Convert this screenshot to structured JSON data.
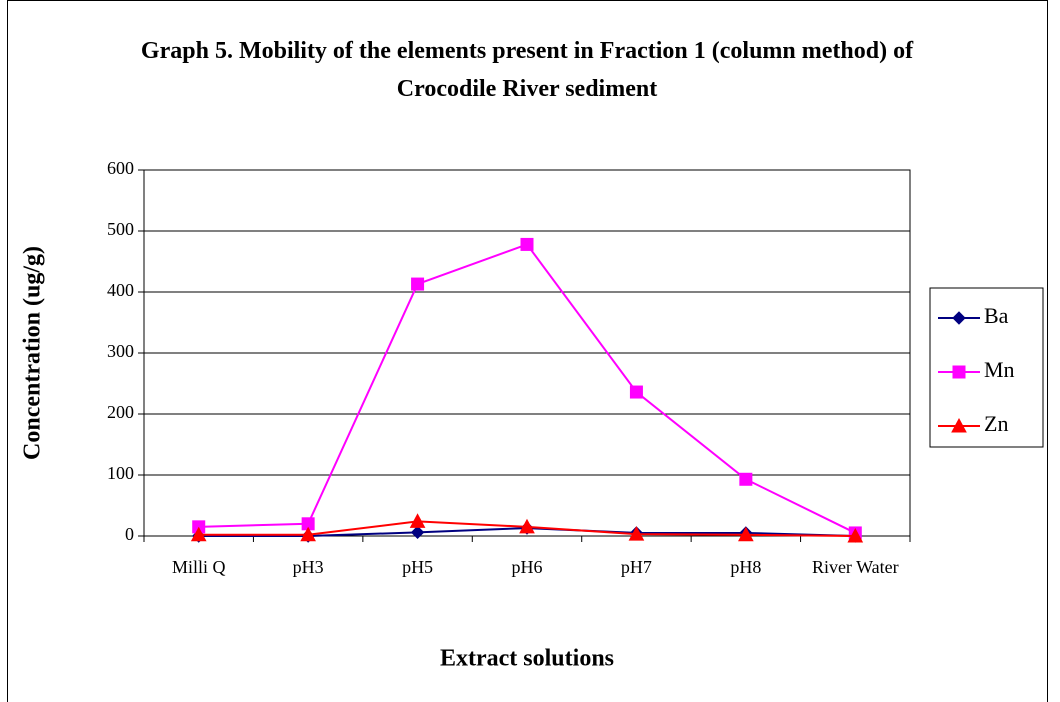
{
  "chart_data": {
    "type": "line",
    "title": "Graph 5. Mobility of the elements present in Fraction 1 (column method) of Crocodile River sediment",
    "x_label": "Extract solutions",
    "y_label": "Concentration (ug/g)",
    "categories": [
      "Milli Q",
      "pH3",
      "pH5",
      "pH6",
      "pH7",
      "pH8",
      "River Water"
    ],
    "series": [
      {
        "name": "Ba",
        "color": "#000080",
        "marker": "diamond",
        "values": [
          0,
          0,
          6,
          13,
          5,
          5,
          0
        ]
      },
      {
        "name": "Mn",
        "color": "#ff00ff",
        "marker": "square",
        "values": [
          15,
          20,
          413,
          478,
          236,
          93,
          5
        ]
      },
      {
        "name": "Zn",
        "color": "#ff0000",
        "marker": "triangle",
        "values": [
          2,
          2,
          24,
          15,
          3,
          2,
          0
        ]
      }
    ],
    "ylim": [
      0,
      600
    ],
    "yticks": [
      0,
      100,
      200,
      300,
      400,
      500,
      600
    ],
    "grid": true,
    "legend": "right"
  }
}
